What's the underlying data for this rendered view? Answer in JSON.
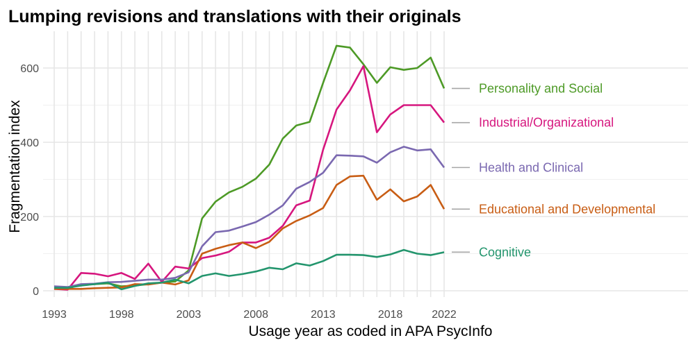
{
  "chart_data": {
    "type": "line",
    "title": "Lumping revisions and translations with their originals",
    "xlabel": "Usage year as coded in APA PsycInfo",
    "ylabel": "Fragmentation index",
    "xlim": [
      1993,
      2022
    ],
    "ylim": [
      0,
      600
    ],
    "x_ticks": [
      "1993",
      "1998",
      "2003",
      "2008",
      "2013",
      "2018",
      "2022"
    ],
    "y_ticks": [
      "0",
      "200",
      "400",
      "600"
    ],
    "grid": true,
    "legend": "direct labels at right end of lines",
    "x": [
      1993,
      1994,
      1995,
      1996,
      1997,
      1998,
      1999,
      2000,
      2001,
      2002,
      2003,
      2004,
      2005,
      2006,
      2007,
      2008,
      2009,
      2010,
      2011,
      2012,
      2013,
      2014,
      2015,
      2016,
      2017,
      2018,
      2019,
      2020,
      2021,
      2022
    ],
    "series": [
      {
        "name": "Personality and Social",
        "color": "#4d9a26",
        "values": [
          8,
          6,
          17,
          18,
          20,
          12,
          14,
          18,
          22,
          25,
          55,
          195,
          240,
          265,
          280,
          302,
          340,
          410,
          445,
          455,
          560,
          660,
          655,
          610,
          560,
          602,
          595,
          600,
          628,
          545
        ]
      },
      {
        "name": "Industrial/Organizational",
        "color": "#d6167e",
        "values": [
          5,
          3,
          48,
          46,
          39,
          48,
          32,
          73,
          24,
          65,
          60,
          88,
          95,
          105,
          130,
          130,
          143,
          175,
          230,
          243,
          380,
          488,
          540,
          605,
          427,
          475,
          500,
          500,
          500,
          453
        ]
      },
      {
        "name": "Health and Clinical",
        "color": "#7a68b0",
        "values": [
          12,
          10,
          18,
          19,
          23,
          24,
          27,
          30,
          30,
          35,
          50,
          120,
          158,
          162,
          173,
          185,
          205,
          230,
          275,
          293,
          318,
          365,
          364,
          362,
          345,
          373,
          388,
          378,
          381,
          332
        ]
      },
      {
        "name": "Educational and Developmental",
        "color": "#c85d14",
        "values": [
          5,
          5,
          5,
          7,
          8,
          9,
          18,
          17,
          22,
          17,
          28,
          100,
          113,
          123,
          130,
          115,
          132,
          168,
          188,
          203,
          223,
          285,
          308,
          310,
          245,
          273,
          241,
          254,
          285,
          220
        ]
      },
      {
        "name": "Cognitive",
        "color": "#23956d",
        "values": [
          8,
          8,
          14,
          18,
          22,
          4,
          13,
          20,
          22,
          30,
          20,
          40,
          47,
          40,
          45,
          52,
          62,
          58,
          74,
          68,
          80,
          97,
          97,
          96,
          91,
          98,
          110,
          100,
          96,
          104
        ]
      }
    ]
  }
}
